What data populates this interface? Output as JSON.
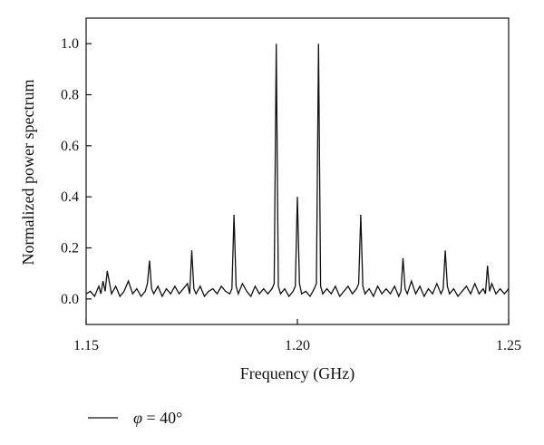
{
  "chart_data": {
    "type": "line",
    "xlabel": "Frequency (GHz)",
    "ylabel": "Normalized power spectrum",
    "xlim": [
      1.15,
      1.25
    ],
    "ylim": [
      -0.1,
      1.1
    ],
    "x_ticks": [
      1.15,
      1.2,
      1.25
    ],
    "x_tick_labels": [
      "1.15",
      "1.20",
      "1.25"
    ],
    "y_ticks": [
      0.0,
      0.2,
      0.4,
      0.6,
      0.8,
      1.0
    ],
    "y_tick_labels": [
      "0.0",
      "0.2",
      "0.4",
      "0.6",
      "0.8",
      "1.0"
    ],
    "grid": false,
    "legend": {
      "placement": "bottom-left",
      "symbol": "φ",
      "text": " = 40°"
    },
    "series": [
      {
        "color": "#111111",
        "x": [
          1.15,
          1.151,
          1.152,
          1.153,
          1.1535,
          1.154,
          1.1545,
          1.155,
          1.156,
          1.157,
          1.158,
          1.159,
          1.16,
          1.161,
          1.162,
          1.163,
          1.164,
          1.1645,
          1.165,
          1.1655,
          1.166,
          1.167,
          1.168,
          1.169,
          1.17,
          1.171,
          1.172,
          1.173,
          1.174,
          1.1745,
          1.175,
          1.1755,
          1.176,
          1.177,
          1.178,
          1.179,
          1.18,
          1.181,
          1.182,
          1.183,
          1.184,
          1.1845,
          1.185,
          1.1855,
          1.186,
          1.187,
          1.188,
          1.189,
          1.19,
          1.191,
          1.192,
          1.193,
          1.194,
          1.1945,
          1.195,
          1.1955,
          1.196,
          1.197,
          1.198,
          1.199,
          1.1995,
          1.2,
          1.2005,
          1.201,
          1.202,
          1.203,
          1.204,
          1.2045,
          1.205,
          1.2055,
          1.206,
          1.207,
          1.208,
          1.209,
          1.21,
          1.211,
          1.212,
          1.213,
          1.214,
          1.2145,
          1.215,
          1.2155,
          1.216,
          1.217,
          1.218,
          1.219,
          1.22,
          1.221,
          1.222,
          1.223,
          1.224,
          1.2245,
          1.225,
          1.2255,
          1.226,
          1.227,
          1.228,
          1.229,
          1.23,
          1.231,
          1.232,
          1.233,
          1.234,
          1.2345,
          1.235,
          1.2355,
          1.236,
          1.237,
          1.238,
          1.239,
          1.24,
          1.241,
          1.242,
          1.243,
          1.244,
          1.2445,
          1.245,
          1.2455,
          1.246,
          1.247,
          1.248,
          1.249,
          1.25
        ],
        "y": [
          0.02,
          0.03,
          0.01,
          0.05,
          0.02,
          0.07,
          0.03,
          0.11,
          0.02,
          0.05,
          0.01,
          0.03,
          0.07,
          0.02,
          0.04,
          0.01,
          0.03,
          0.06,
          0.15,
          0.04,
          0.02,
          0.05,
          0.01,
          0.04,
          0.02,
          0.05,
          0.02,
          0.04,
          0.06,
          0.02,
          0.19,
          0.04,
          0.02,
          0.05,
          0.01,
          0.03,
          0.04,
          0.02,
          0.05,
          0.03,
          0.02,
          0.04,
          0.33,
          0.05,
          0.02,
          0.06,
          0.03,
          0.01,
          0.05,
          0.02,
          0.04,
          0.02,
          0.04,
          0.06,
          1.0,
          0.05,
          0.02,
          0.04,
          0.01,
          0.03,
          0.05,
          0.4,
          0.06,
          0.02,
          0.03,
          0.01,
          0.04,
          0.06,
          1.0,
          0.05,
          0.02,
          0.04,
          0.02,
          0.05,
          0.01,
          0.03,
          0.05,
          0.02,
          0.04,
          0.06,
          0.33,
          0.05,
          0.02,
          0.04,
          0.01,
          0.05,
          0.02,
          0.04,
          0.02,
          0.05,
          0.01,
          0.03,
          0.16,
          0.04,
          0.02,
          0.07,
          0.02,
          0.05,
          0.01,
          0.04,
          0.02,
          0.06,
          0.02,
          0.04,
          0.19,
          0.05,
          0.02,
          0.04,
          0.01,
          0.03,
          0.05,
          0.02,
          0.06,
          0.02,
          0.04,
          0.02,
          0.13,
          0.03,
          0.06,
          0.02,
          0.04,
          0.02,
          0.04
        ]
      }
    ]
  }
}
